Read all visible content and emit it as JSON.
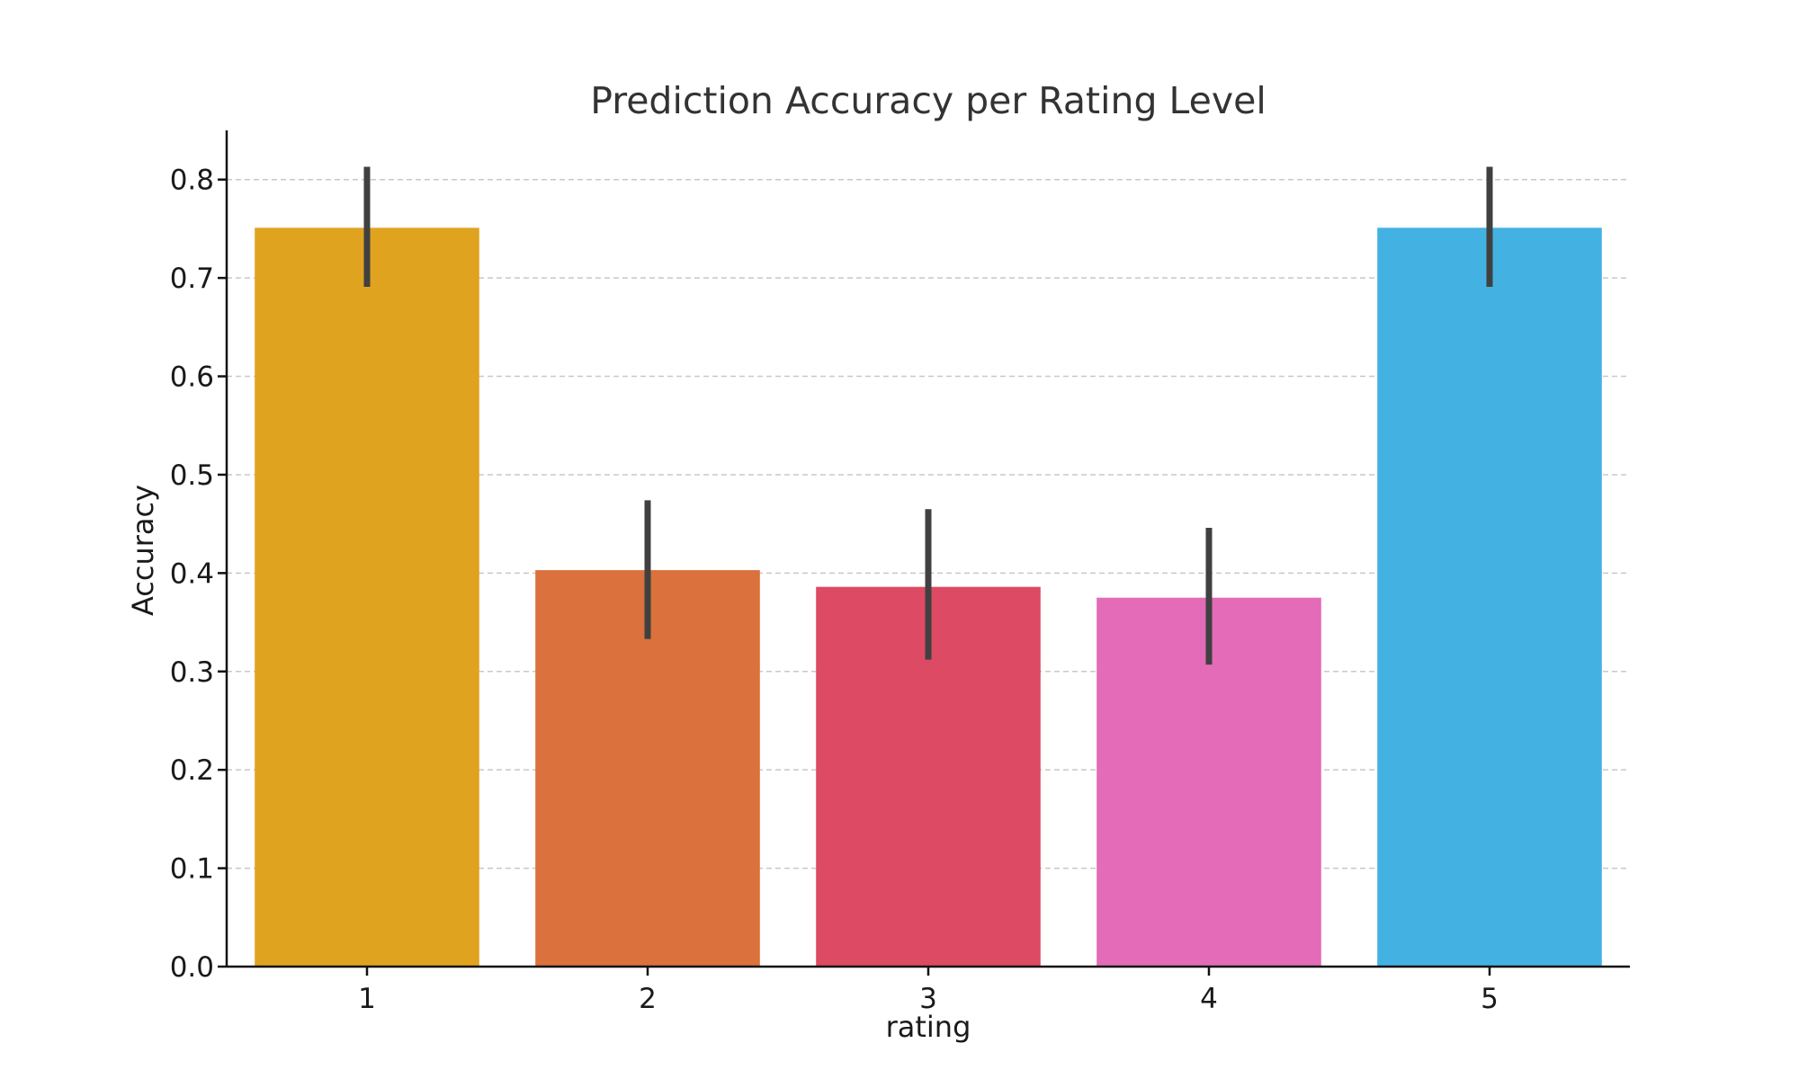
{
  "chart_data": {
    "type": "bar",
    "title": "Prediction Accuracy per Rating Level",
    "xlabel": "rating",
    "ylabel": "Accuracy",
    "categories": [
      "1",
      "2",
      "3",
      "4",
      "5"
    ],
    "values": [
      0.751,
      0.403,
      0.386,
      0.375,
      0.751
    ],
    "error_low": [
      0.691,
      0.333,
      0.312,
      0.307,
      0.691
    ],
    "error_high": [
      0.813,
      0.474,
      0.465,
      0.446,
      0.813
    ],
    "colors": [
      "#E0A320",
      "#DB713C",
      "#DC4A64",
      "#E36BB8",
      "#43B2E2"
    ],
    "ylim": [
      0,
      0.85
    ],
    "yticks": [
      "0.0",
      "0.1",
      "0.2",
      "0.3",
      "0.4",
      "0.5",
      "0.6",
      "0.7",
      "0.8"
    ],
    "grid": true,
    "legend": "none"
  }
}
